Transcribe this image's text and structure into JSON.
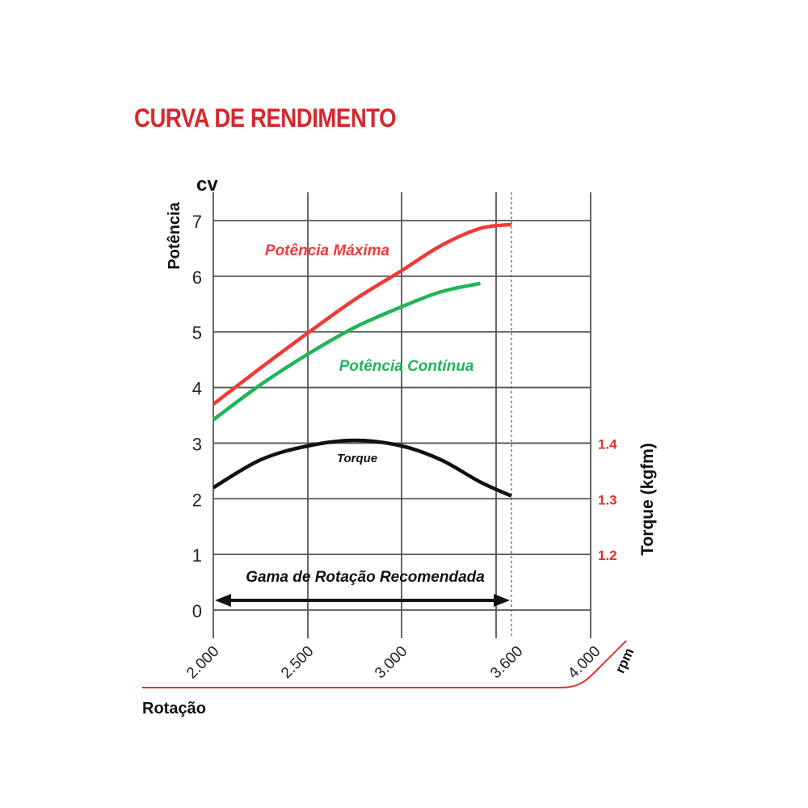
{
  "page_title": "CURVA DE RENDIMENTO",
  "colors": {
    "title": "#d7262c",
    "max_power": "#ef3b36",
    "continuous_power": "#22b45a",
    "torque": "#111111",
    "right_ticks": "#e0342e",
    "grid": "#555555",
    "rotation_line": "#e0342e"
  },
  "chart_data": {
    "type": "line",
    "title": "CURVA DE RENDIMENTO",
    "xlabel": "Rotação",
    "x_unit": "rpm",
    "xlim": [
      2000,
      4000
    ],
    "x_ticks": [
      2000,
      2500,
      3000,
      3600,
      4000
    ],
    "x_tick_labels": [
      "2.000",
      "2.500",
      "3.000",
      "3.600",
      "4.000"
    ],
    "ylabel": "Potência",
    "y_unit": "cv",
    "ylim": [
      0,
      7
    ],
    "y_ticks": [
      0,
      1,
      2,
      3,
      4,
      5,
      6,
      7
    ],
    "y_tick_labels": [
      "0",
      "1",
      "2",
      "3",
      "4",
      "5",
      "6",
      "7"
    ],
    "y2label": "Torque (kgfm)",
    "y2_ticks": [
      1.2,
      1.3,
      1.4
    ],
    "y2_tick_labels": [
      "1.2",
      "1.3",
      "1.4"
    ],
    "grid": true,
    "series": [
      {
        "name": "Potência Máxima",
        "axis": "left",
        "x": [
          2000,
          2250,
          2500,
          2750,
          3000,
          3250,
          3500,
          3600
        ],
        "y": [
          3.7,
          4.35,
          4.98,
          5.58,
          6.1,
          6.55,
          6.86,
          6.93
        ]
      },
      {
        "name": "Potência Contínua",
        "axis": "left",
        "x": [
          2000,
          2250,
          2500,
          2750,
          3000,
          3250,
          3500
        ],
        "y": [
          3.42,
          4.05,
          4.6,
          5.08,
          5.45,
          5.72,
          5.87
        ]
      },
      {
        "name": "Torque",
        "axis": "right",
        "x": [
          2000,
          2250,
          2500,
          2750,
          3000,
          3250,
          3500,
          3600
        ],
        "y": [
          1.32,
          1.37,
          1.395,
          1.405,
          1.395,
          1.37,
          1.33,
          1.305
        ]
      }
    ],
    "annotations": {
      "recommended_range": {
        "label": "Gama de Rotação Recomendada",
        "x_start": 2000,
        "x_end": 3600
      }
    }
  }
}
